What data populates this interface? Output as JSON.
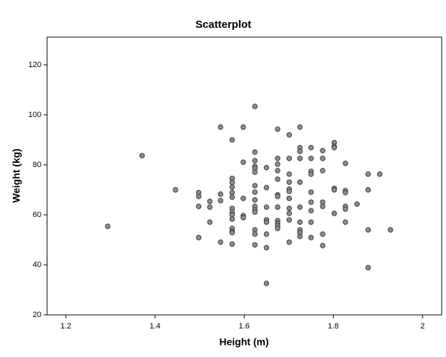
{
  "chart_data": {
    "type": "scatter",
    "title": "Scatterplot",
    "x_label": "Height (m)",
    "y_label": "Weight (kg)",
    "color": "#8c8c8c",
    "xlim": [
      1.158,
      2.043
    ],
    "ylim": [
      20,
      131.1
    ],
    "xticks": [
      1.2,
      1.4,
      1.6,
      1.8,
      2.0
    ],
    "yticks": [
      20,
      40,
      60,
      80,
      100,
      120
    ],
    "grid": false,
    "x": [
      1.294,
      1.371,
      1.446,
      1.498,
      1.498,
      1.498,
      1.498,
      1.523,
      1.523,
      1.523,
      1.547,
      1.547,
      1.547,
      1.547,
      1.573,
      1.573,
      1.573,
      1.573,
      1.573,
      1.573,
      1.573,
      1.573,
      1.573,
      1.573,
      1.573,
      1.573,
      1.573,
      1.573,
      1.598,
      1.598,
      1.598,
      1.598,
      1.598,
      1.624,
      1.624,
      1.624,
      1.624,
      1.624,
      1.624,
      1.624,
      1.624,
      1.624,
      1.624,
      1.624,
      1.624,
      1.624,
      1.624,
      1.624,
      1.65,
      1.65,
      1.65,
      1.65,
      1.65,
      1.65,
      1.65,
      1.65,
      1.675,
      1.675,
      1.675,
      1.675,
      1.675,
      1.675,
      1.675,
      1.675,
      1.675,
      1.675,
      1.675,
      1.675,
      1.701,
      1.701,
      1.701,
      1.701,
      1.701,
      1.701,
      1.701,
      1.701,
      1.701,
      1.701,
      1.701,
      1.725,
      1.725,
      1.725,
      1.725,
      1.725,
      1.725,
      1.725,
      1.725,
      1.725,
      1.725,
      1.75,
      1.75,
      1.75,
      1.75,
      1.75,
      1.75,
      1.75,
      1.75,
      1.75,
      1.776,
      1.776,
      1.776,
      1.776,
      1.776,
      1.776,
      1.776,
      1.802,
      1.802,
      1.802,
      1.802,
      1.802,
      1.802,
      1.827,
      1.827,
      1.827,
      1.827,
      1.827,
      1.827,
      1.853,
      1.878,
      1.878,
      1.878,
      1.878,
      1.904,
      1.928
    ],
    "y": [
      55.4,
      83.7,
      70,
      68.9,
      67.4,
      63.4,
      50.9,
      65.4,
      63.1,
      57.1,
      95.1,
      68.3,
      65.7,
      49.1,
      90,
      74.6,
      72.9,
      71.1,
      68.9,
      67.1,
      62.6,
      61.1,
      60,
      58.3,
      54.6,
      53.4,
      52.9,
      48.3,
      95.1,
      81.1,
      66.6,
      59.7,
      58.9,
      103.4,
      85.1,
      81.7,
      79.4,
      78.6,
      77.1,
      71.7,
      69.1,
      66,
      63.4,
      62,
      61.1,
      54,
      52.3,
      48,
      78.9,
      70.9,
      63.1,
      58,
      57.1,
      52.3,
      46.9,
      32.6,
      94.3,
      82.6,
      80.3,
      77.7,
      74.3,
      68,
      67.4,
      63.1,
      57.7,
      56.6,
      55.7,
      54.6,
      92,
      82.6,
      76.3,
      73.1,
      70.3,
      69.4,
      66.6,
      62.6,
      60.6,
      58,
      49.1,
      95.1,
      86.9,
      85.4,
      82.6,
      73.1,
      63.1,
      57.1,
      54,
      52.9,
      51.4,
      86.9,
      82.6,
      77.4,
      76.3,
      69.1,
      65.1,
      61.7,
      57.1,
      50.9,
      85.7,
      82.6,
      77.7,
      65.1,
      63.4,
      52.3,
      47.7,
      88.9,
      87.4,
      86.9,
      70.6,
      70,
      60.6,
      80.6,
      69.7,
      68.9,
      63.4,
      62.3,
      57.1,
      64.3,
      76.3,
      70,
      54,
      38.9,
      76.3,
      54
    ]
  }
}
